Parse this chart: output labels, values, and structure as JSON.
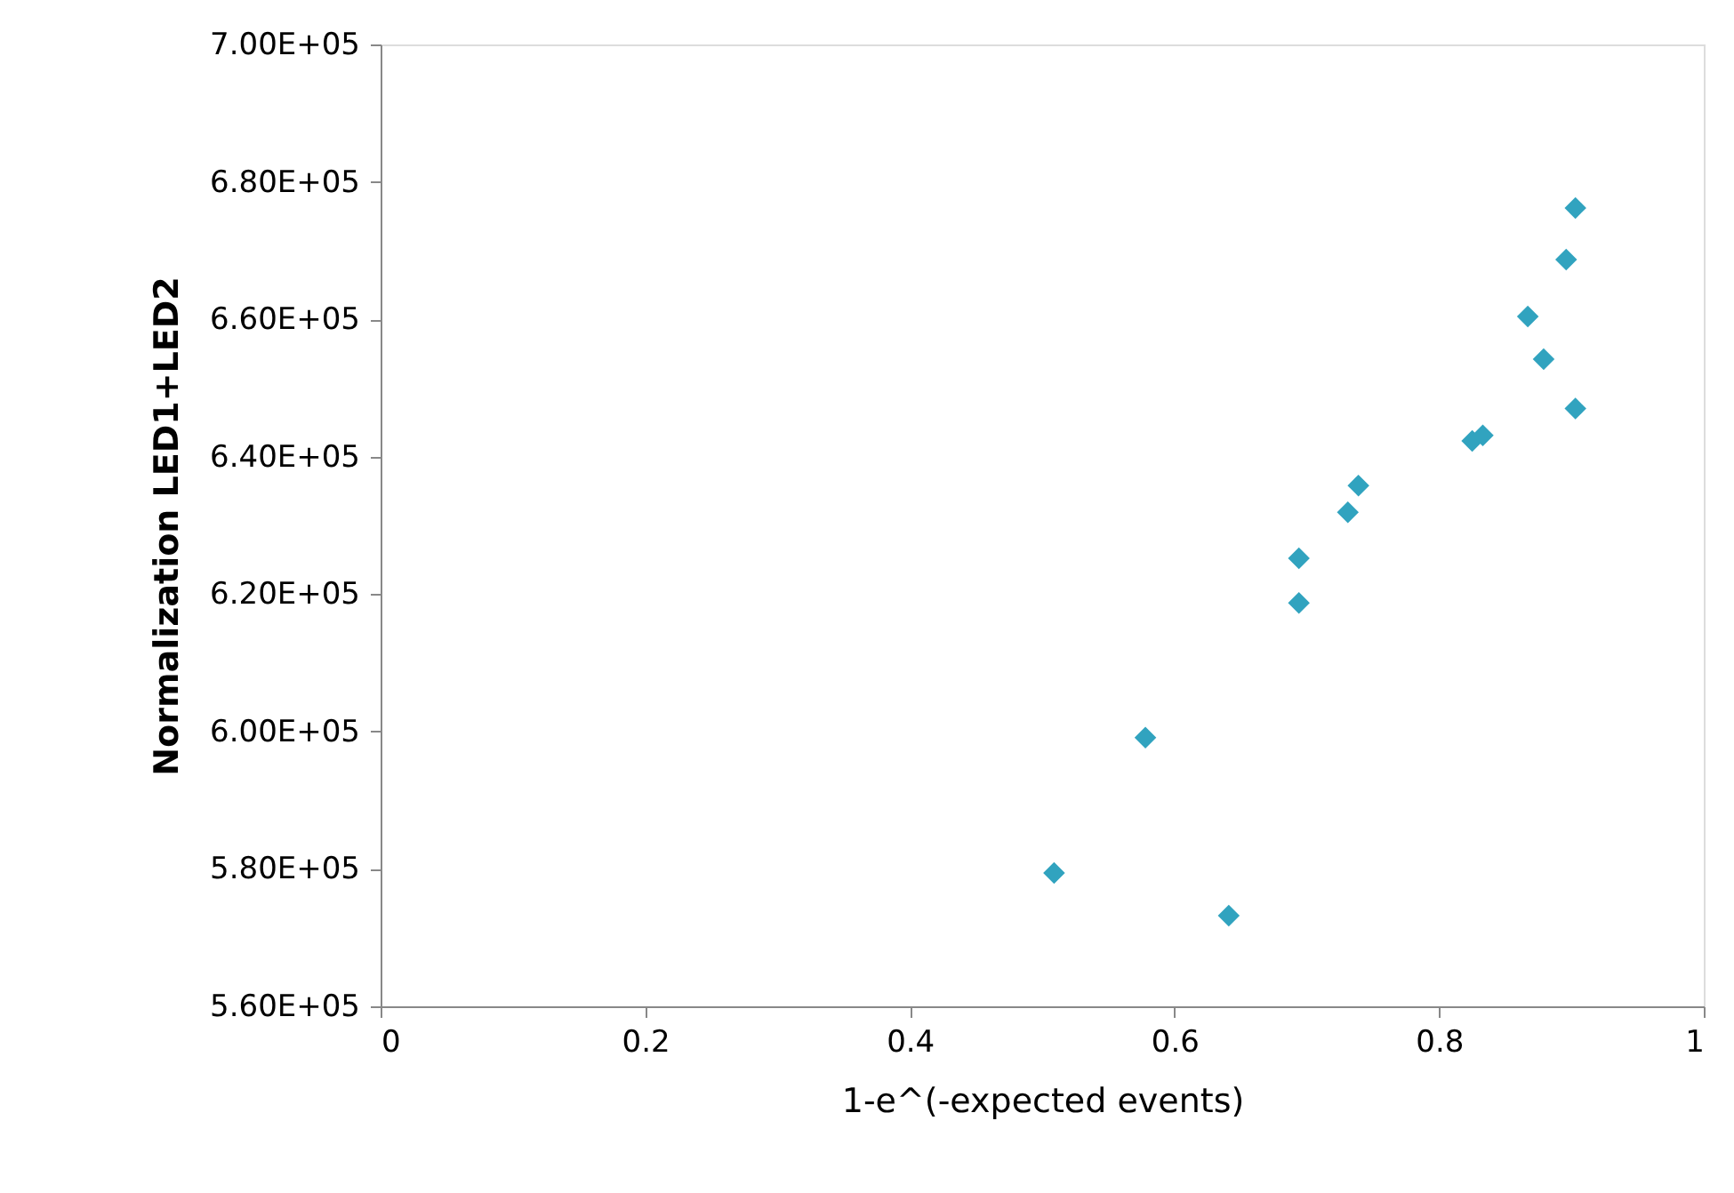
{
  "chart_data": {
    "type": "scatter",
    "xlabel": "1-e^(-expected events)",
    "ylabel": "Normalization LED1+LED2",
    "x": [
      0.509,
      0.578,
      0.641,
      0.694,
      0.694,
      0.731,
      0.739,
      0.825,
      0.833,
      0.867,
      0.879,
      0.896,
      0.903,
      0.903
    ],
    "series": [
      {
        "color": "#31a3bf",
        "values": [
          579400,
          599100,
          573200,
          625200,
          618700,
          631900,
          635800,
          642300,
          643100,
          660400,
          654200,
          668700,
          647000,
          676200
        ]
      }
    ],
    "xlim": [
      0,
      1
    ],
    "xticks": [
      0,
      0.2,
      0.4,
      0.6,
      0.8,
      1
    ],
    "ylim": [
      560000,
      700000
    ],
    "yticks": [
      {
        "value": 560000,
        "label": "5.60E+05"
      },
      {
        "value": 580000,
        "label": "5.80E+05"
      },
      {
        "value": 600000,
        "label": "6.00E+05"
      },
      {
        "value": 620000,
        "label": "6.20E+05"
      },
      {
        "value": 640000,
        "label": "6.40E+05"
      },
      {
        "value": 660000,
        "label": "6.60E+05"
      },
      {
        "value": 680000,
        "label": "6.80E+05"
      },
      {
        "value": 700000,
        "label": "7.00E+05"
      }
    ],
    "grid": false,
    "marker": "diamond"
  }
}
